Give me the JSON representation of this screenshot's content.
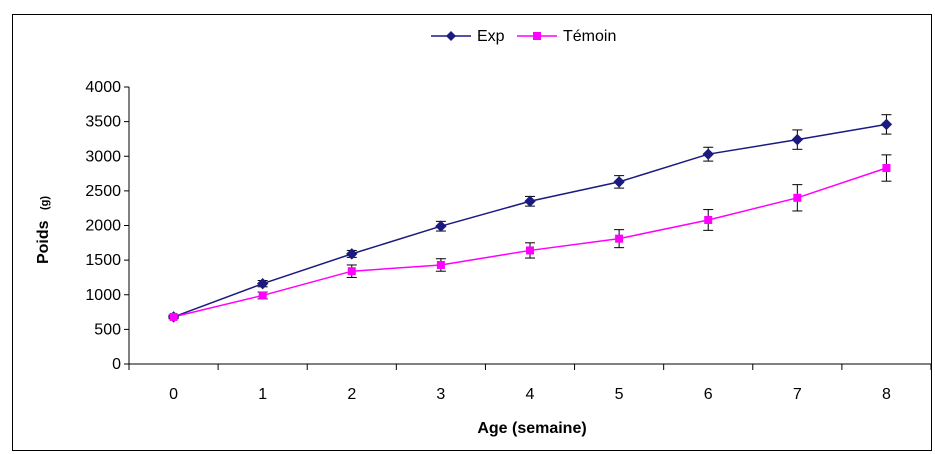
{
  "chart_data": {
    "type": "line",
    "title": "",
    "xlabel": "Age (semaine)",
    "ylabel": "Poids",
    "ylabel_unit": "(g)",
    "categories": [
      "0",
      "1",
      "2",
      "3",
      "4",
      "5",
      "6",
      "7",
      "8"
    ],
    "x": [
      0,
      1,
      2,
      3,
      4,
      5,
      6,
      7,
      8
    ],
    "ylim": [
      0,
      4000
    ],
    "yticks": [
      0,
      500,
      1000,
      1500,
      2000,
      2500,
      3000,
      3500,
      4000
    ],
    "grid": false,
    "legend_position": "top-center",
    "series": [
      {
        "name": "Exp",
        "color": "#1a1a80",
        "marker": "diamond",
        "values": [
          680,
          1160,
          1590,
          1990,
          2350,
          2630,
          3030,
          3240,
          3460
        ],
        "error": [
          25,
          45,
          50,
          70,
          70,
          90,
          100,
          140,
          140
        ]
      },
      {
        "name": "Témoin",
        "color": "#ff00ff",
        "marker": "square",
        "values": [
          680,
          990,
          1340,
          1430,
          1640,
          1810,
          2080,
          2400,
          2830
        ],
        "error": [
          25,
          50,
          90,
          90,
          110,
          130,
          150,
          190,
          190
        ]
      }
    ]
  }
}
